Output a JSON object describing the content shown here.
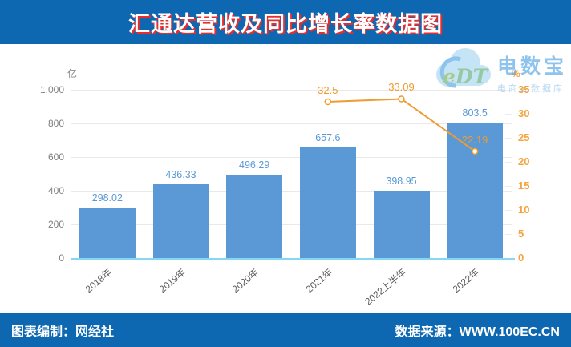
{
  "header": {
    "title": "汇通达营收及同比增长率数据图"
  },
  "footer": {
    "left": "图表编制：网经社",
    "right": "数据来源：WWW.100EC.CN"
  },
  "watermark": {
    "logo_e": "e",
    "logo_dt": "DT",
    "name": "电数宝",
    "subtitle": "电商大数据库"
  },
  "chart_data": {
    "type": "bar+line",
    "title": "汇通达营收及同比增长率数据图",
    "categories": [
      "2018年",
      "2019年",
      "2020年",
      "2021年",
      "2022上半年",
      "2022年"
    ],
    "series": [
      {
        "name": "营收",
        "type": "bar",
        "unit": "亿",
        "values": [
          298.02,
          436.33,
          496.29,
          657.6,
          398.95,
          803.5
        ],
        "labels": [
          "298.02",
          "436.33",
          "496.29",
          "657.6",
          "398.95",
          "803.5"
        ],
        "color": "#5b99d6"
      },
      {
        "name": "同比增长率",
        "type": "line",
        "unit": "%",
        "x_indices": [
          3,
          4,
          5
        ],
        "values": [
          32.5,
          33.09,
          22.19
        ],
        "labels": [
          "32.5",
          "33.09",
          "22.19"
        ],
        "color": "#ef9b2d"
      }
    ],
    "left_axis": {
      "unit": "亿",
      "min": 0,
      "max": 1000,
      "tick_labels": [
        "0",
        "200",
        "400",
        "600",
        "800",
        "1,000"
      ]
    },
    "right_axis": {
      "unit": "%",
      "min": 0,
      "max": 35,
      "tick_labels": [
        "0",
        "5",
        "10",
        "15",
        "20",
        "25",
        "30",
        "35"
      ]
    },
    "grid": true,
    "legend": "none"
  }
}
